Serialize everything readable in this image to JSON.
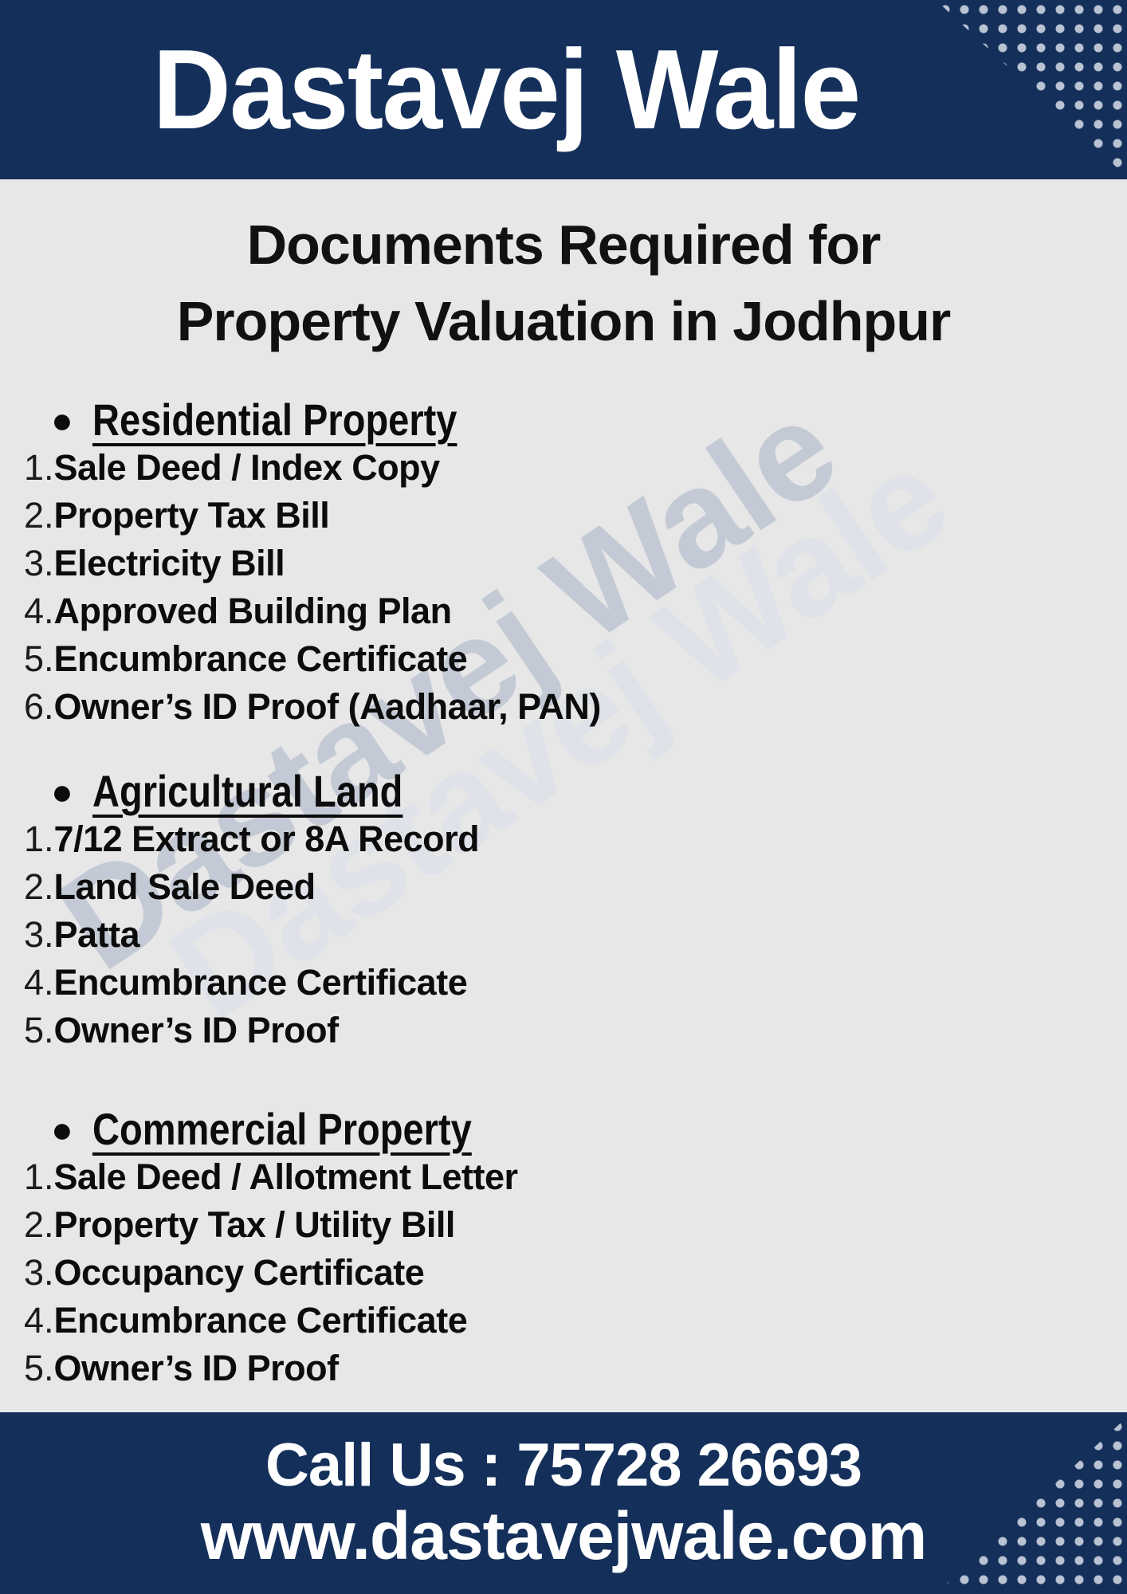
{
  "header": {
    "title": "Dastavej Wale"
  },
  "main": {
    "title_line1": "Documents Required for",
    "title_line2": "Property Valuation in Jodhpur",
    "watermark": "Dastavej Wale",
    "sections": [
      {
        "heading": "Residential Property",
        "items": [
          "Sale Deed / Index Copy",
          "Property Tax Bill",
          "Electricity Bill",
          "Approved Building Plan",
          "Encumbrance Certificate",
          "Owner’s ID Proof (Aadhaar, PAN)"
        ]
      },
      {
        "heading": "Agricultural Land",
        "items": [
          "7/12 Extract or 8A Record",
          "Land Sale Deed",
          "Patta",
          "Encumbrance Certificate",
          "Owner’s ID Proof"
        ]
      },
      {
        "heading": "Commercial Property",
        "items": [
          "Sale Deed / Allotment Letter",
          "Property Tax / Utility Bill",
          "Occupancy Certificate",
          "Encumbrance Certificate",
          "Owner’s ID Proof"
        ]
      }
    ]
  },
  "footer": {
    "call_line": "Call Us : 75728 26693",
    "website": "www.dastavejwale.com"
  },
  "colors": {
    "navy": "#14305a",
    "body_bg": "#e7e7e7",
    "dot": "#b9c3d3",
    "watermark_main": "#c4cad5",
    "watermark_light": "#dfe2e8",
    "text": "#0c0c0c",
    "footer_text": "#ffffff"
  }
}
